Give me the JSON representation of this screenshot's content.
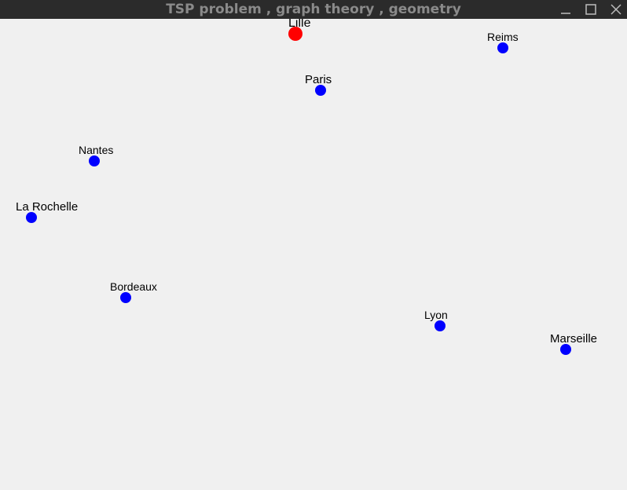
{
  "window": {
    "title": "TSP problem , graph theory , geometry",
    "controls": {
      "minimize_icon": "minimize-icon",
      "maximize_icon": "maximize-icon",
      "close_icon": "close-icon"
    }
  },
  "colors": {
    "titlebar_bg": "#2b2b2b",
    "title_text": "#8a8a8a",
    "canvas_bg": "#f0f0f0",
    "start_city": "#ff0000",
    "city": "#0000ff",
    "label": "#000000"
  },
  "cities": [
    {
      "name": "Lille",
      "start": true
    },
    {
      "name": "Reims",
      "start": false
    },
    {
      "name": "Paris",
      "start": false
    },
    {
      "name": "Nantes",
      "start": false
    },
    {
      "name": "La Rochelle",
      "start": false
    },
    {
      "name": "Bordeaux",
      "start": false
    },
    {
      "name": "Lyon",
      "start": false
    },
    {
      "name": "Marseille",
      "start": false
    }
  ]
}
